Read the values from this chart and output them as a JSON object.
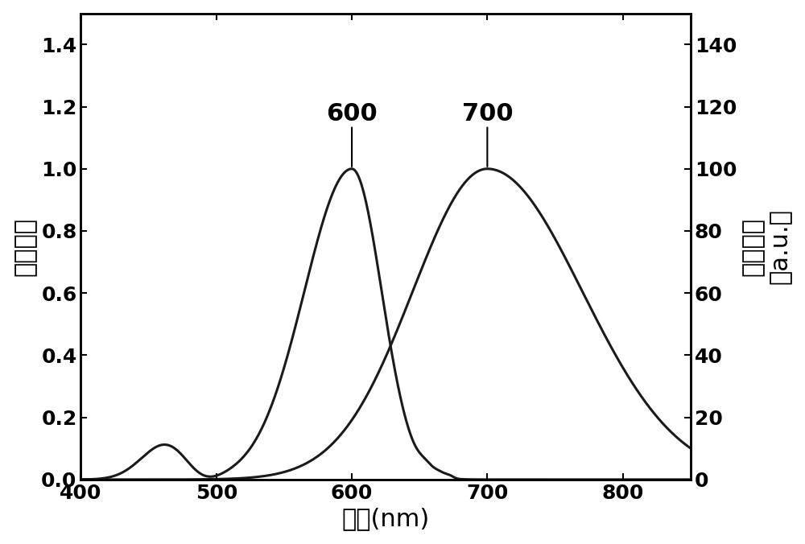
{
  "title": "",
  "xlabel": "波长(nm)",
  "ylabel_left": "吸收强度",
  "ylabel_right_main": "荧光强度",
  "ylabel_right_unit": "（a.u.）",
  "xlim": [
    400,
    850
  ],
  "ylim_left": [
    0.0,
    1.5
  ],
  "ylim_right": [
    0,
    150
  ],
  "yticks_left": [
    0.0,
    0.2,
    0.4,
    0.6,
    0.8,
    1.0,
    1.2,
    1.4
  ],
  "yticks_right": [
    0,
    20,
    40,
    60,
    80,
    100,
    120,
    140
  ],
  "xticks": [
    400,
    500,
    600,
    700,
    800
  ],
  "absorption_peak": 600,
  "fluorescence_peak": 700,
  "annotation_600": "600",
  "annotation_700": "700",
  "line_color": "#1a1a1a",
  "background_color": "#ffffff",
  "font_size_label": 22,
  "font_size_tick": 18,
  "font_size_annotation": 22
}
